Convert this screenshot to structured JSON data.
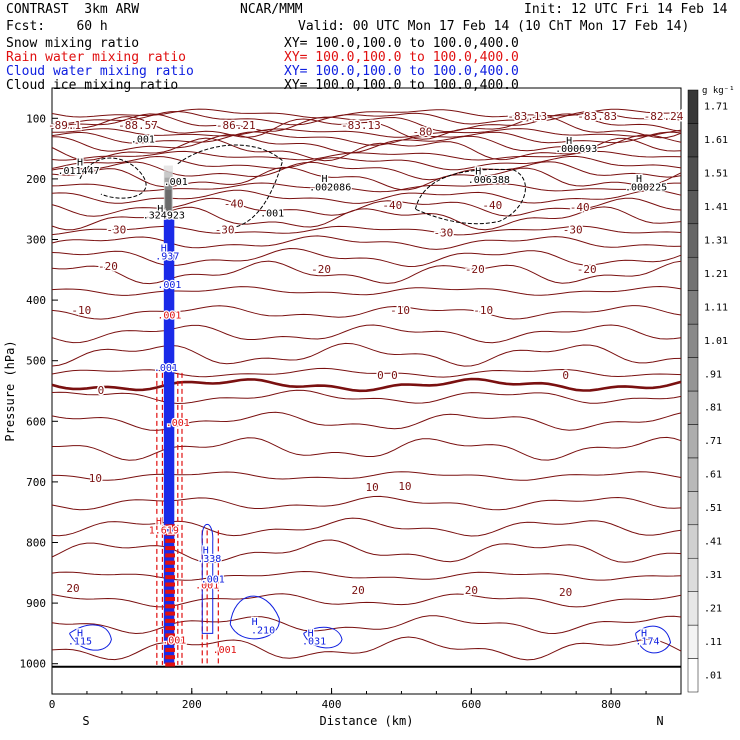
{
  "header": {
    "model": "CONTRAST  3km ARW",
    "institution": "NCAR/MMM",
    "init": "Init: 12 UTC Fri 14 Feb 14",
    "fcst": "Fcst:    60 h",
    "valid": "Valid: 00 UTC Mon 17 Feb 14 (10 ChT Mon 17 Feb 14)",
    "fields": [
      {
        "name": "Snow mixing ratio",
        "xy": "XY= 100.0,100.0 to 100.0,400.0",
        "color": "#000000"
      },
      {
        "name": "Rain water mixing ratio",
        "xy": "XY= 100.0,100.0 to 100.0,400.0",
        "color": "#e01010"
      },
      {
        "name": "Cloud water mixing ratio",
        "xy": "XY= 100.0,100.0 to 100.0,400.0",
        "color": "#1020e0"
      },
      {
        "name": "Cloud ice mixing ratio",
        "xy": "XY= 100.0,100.0 to 100.0,400.0",
        "color": "#000000"
      }
    ]
  },
  "chart_data": {
    "type": "cross-section",
    "xlabel": "Distance (km)",
    "ylabel": "Pressure (hPa)",
    "xlim": [
      0,
      900
    ],
    "ylim": [
      1050,
      50
    ],
    "x_ticks": [
      0,
      200,
      400,
      600,
      800
    ],
    "y_ticks": [
      100,
      200,
      300,
      400,
      500,
      600,
      700,
      800,
      900,
      1000
    ],
    "end_labels": {
      "left": "S",
      "right": "N"
    },
    "colorbar": {
      "unit": "g kg⁻¹",
      "labels": [
        ".01",
        ".11",
        ".21",
        ".31",
        ".41",
        ".51",
        ".61",
        ".71",
        ".81",
        ".91",
        "1.01",
        "1.11",
        "1.21",
        "1.31",
        "1.41",
        "1.51",
        "1.61",
        "1.71"
      ]
    },
    "temperature_contours": {
      "color": "#7a1010",
      "levels_degC": [
        -80,
        -40,
        -30,
        -20,
        -10,
        0,
        10,
        20
      ],
      "labels": [
        {
          "text": "-89.1",
          "x": 18,
          "p": 118
        },
        {
          "text": "-88.57",
          "x": 123,
          "p": 118
        },
        {
          "text": "-86.21",
          "x": 263,
          "p": 118
        },
        {
          "text": "-83.13",
          "x": 442,
          "p": 118
        },
        {
          "text": "-83.13",
          "x": 680,
          "p": 103
        },
        {
          "text": "-83.83",
          "x": 780,
          "p": 103
        },
        {
          "text": "-82.24",
          "x": 875,
          "p": 103
        },
        {
          "text": "-80",
          "x": 530,
          "p": 128
        },
        {
          "text": "-40",
          "x": 260,
          "p": 247
        },
        {
          "text": "-40",
          "x": 487,
          "p": 250
        },
        {
          "text": "-40",
          "x": 630,
          "p": 250
        },
        {
          "text": "-40",
          "x": 755,
          "p": 253
        },
        {
          "text": "-30",
          "x": 92,
          "p": 290
        },
        {
          "text": "-30",
          "x": 247,
          "p": 290
        },
        {
          "text": "-30",
          "x": 560,
          "p": 295
        },
        {
          "text": "-30",
          "x": 745,
          "p": 290
        },
        {
          "text": "-20",
          "x": 80,
          "p": 350
        },
        {
          "text": "-20",
          "x": 385,
          "p": 355
        },
        {
          "text": "-20",
          "x": 605,
          "p": 355
        },
        {
          "text": "-20",
          "x": 765,
          "p": 355
        },
        {
          "text": "-10",
          "x": 42,
          "p": 423
        },
        {
          "text": "-10",
          "x": 498,
          "p": 423
        },
        {
          "text": "-10",
          "x": 617,
          "p": 423
        },
        {
          "text": "0",
          "x": 470,
          "p": 530
        },
        {
          "text": "0",
          "x": 490,
          "p": 530
        },
        {
          "text": "0",
          "x": 735,
          "p": 530
        },
        {
          "text": "0",
          "x": 70,
          "p": 555
        },
        {
          "text": "10",
          "x": 62,
          "p": 700
        },
        {
          "text": "10",
          "x": 458,
          "p": 715
        },
        {
          "text": "10",
          "x": 505,
          "p": 713
        },
        {
          "text": "20",
          "x": 30,
          "p": 882
        },
        {
          "text": "20",
          "x": 600,
          "p": 885
        },
        {
          "text": "20",
          "x": 735,
          "p": 888
        },
        {
          "text": "20",
          "x": 438,
          "p": 885
        }
      ]
    },
    "mixing_ratio_labels": [
      {
        "field": "snow",
        "text": "H",
        "x": 40,
        "p": 178,
        "color": "#000000"
      },
      {
        "field": "snow",
        "text": ".011447",
        "x": 38,
        "p": 192,
        "color": "#000000"
      },
      {
        "field": "snow",
        "text": ".001",
        "x": 130,
        "p": 140,
        "color": "#000000"
      },
      {
        "field": "snow",
        "text": ".001",
        "x": 177,
        "p": 210,
        "color": "#000000"
      },
      {
        "field": "snow",
        "text": "H",
        "x": 155,
        "p": 255,
        "color": "#000000"
      },
      {
        "field": "snow",
        "text": ".324923",
        "x": 160,
        "p": 265,
        "color": "#000000"
      },
      {
        "field": "snow",
        "text": ".001",
        "x": 315,
        "p": 262,
        "color": "#000000"
      },
      {
        "field": "snow",
        "text": "H",
        "x": 390,
        "p": 205,
        "color": "#000000"
      },
      {
        "field": "snow",
        "text": ".002086",
        "x": 398,
        "p": 219,
        "color": "#000000"
      },
      {
        "field": "snow",
        "text": "H",
        "x": 610,
        "p": 193,
        "color": "#000000"
      },
      {
        "field": "snow",
        "text": ".006388",
        "x": 625,
        "p": 207,
        "color": "#000000"
      },
      {
        "field": "snow",
        "text": "H",
        "x": 740,
        "p": 142,
        "color": "#000000"
      },
      {
        "field": "snow",
        "text": ".000693",
        "x": 750,
        "p": 156,
        "color": "#000000"
      },
      {
        "field": "snow",
        "text": "H",
        "x": 840,
        "p": 205,
        "color": "#000000"
      },
      {
        "field": "snow",
        "text": ".000225",
        "x": 850,
        "p": 219,
        "color": "#000000"
      },
      {
        "field": "rain",
        "text": "H",
        "x": 153,
        "p": 770,
        "color": "#e01010"
      },
      {
        "field": "rain",
        "text": "1.619",
        "x": 160,
        "p": 785,
        "color": "#e01010"
      },
      {
        "field": "rain",
        "text": ".001",
        "x": 168,
        "p": 430,
        "color": "#e01010"
      },
      {
        "field": "rain",
        "text": ".001",
        "x": 180,
        "p": 608,
        "color": "#e01010"
      },
      {
        "field": "rain",
        "text": ".001",
        "x": 222,
        "p": 876,
        "color": "#e01010"
      },
      {
        "field": "rain",
        "text": ".001",
        "x": 247,
        "p": 982,
        "color": "#e01010"
      },
      {
        "field": "rain",
        "text": ".001",
        "x": 175,
        "p": 967,
        "color": "#e01010"
      },
      {
        "field": "cloud_water",
        "text": "H",
        "x": 160,
        "p": 320,
        "color": "#1020e0"
      },
      {
        "field": "cloud_water",
        "text": ".937",
        "x": 165,
        "p": 333,
        "color": "#1020e0"
      },
      {
        "field": "cloud_water",
        "text": ".001",
        "x": 168,
        "p": 380,
        "color": "#1020e0"
      },
      {
        "field": "cloud_water",
        "text": ".001",
        "x": 163,
        "p": 517,
        "color": "#1020e0"
      },
      {
        "field": "cloud_water",
        "text": "H",
        "x": 220,
        "p": 818,
        "color": "#1020e0"
      },
      {
        "field": "cloud_water",
        "text": ".338",
        "x": 225,
        "p": 832,
        "color": "#1020e0"
      },
      {
        "field": "cloud_water",
        "text": ".001",
        "x": 230,
        "p": 866,
        "color": "#1020e0"
      },
      {
        "field": "cloud_water",
        "text": "H",
        "x": 290,
        "p": 936,
        "color": "#1020e0"
      },
      {
        "field": "cloud_water",
        "text": ".210",
        "x": 302,
        "p": 950,
        "color": "#1020e0"
      },
      {
        "field": "cloud_water",
        "text": "H",
        "x": 40,
        "p": 955,
        "color": "#1020e0"
      },
      {
        "field": "cloud_water",
        "text": ".115",
        "x": 40,
        "p": 968,
        "color": "#1020e0"
      },
      {
        "field": "cloud_water",
        "text": "H",
        "x": 370,
        "p": 955,
        "color": "#1020e0"
      },
      {
        "field": "cloud_water",
        "text": ".031",
        "x": 375,
        "p": 968,
        "color": "#1020e0"
      },
      {
        "field": "cloud_water",
        "text": "H",
        "x": 847,
        "p": 955,
        "color": "#1020e0"
      },
      {
        "field": "cloud_water",
        "text": ".174",
        "x": 852,
        "p": 968,
        "color": "#1020e0"
      }
    ]
  }
}
